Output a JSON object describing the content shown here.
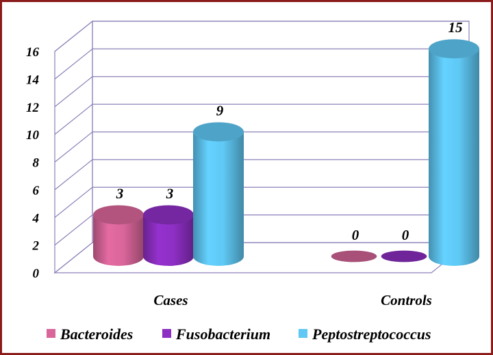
{
  "chart_data": {
    "type": "bar",
    "style": "3d-cylinder",
    "categories": [
      "Cases",
      "Controls"
    ],
    "series": [
      {
        "name": "Bacteroides",
        "values": [
          3,
          0
        ],
        "color": "#d9669a"
      },
      {
        "name": "Fusobacterium",
        "values": [
          3,
          0
        ],
        "color": "#8e2fc4"
      },
      {
        "name": "Peptostreptococcus",
        "values": [
          9,
          15
        ],
        "color": "#5fc8f4"
      }
    ],
    "y_ticks": [
      0,
      2,
      4,
      6,
      8,
      10,
      12,
      14,
      16
    ],
    "ylim": [
      0,
      16
    ],
    "grid": true,
    "data_labels": true,
    "legend_position": "bottom",
    "title": "",
    "xlabel": "",
    "ylabel": ""
  }
}
